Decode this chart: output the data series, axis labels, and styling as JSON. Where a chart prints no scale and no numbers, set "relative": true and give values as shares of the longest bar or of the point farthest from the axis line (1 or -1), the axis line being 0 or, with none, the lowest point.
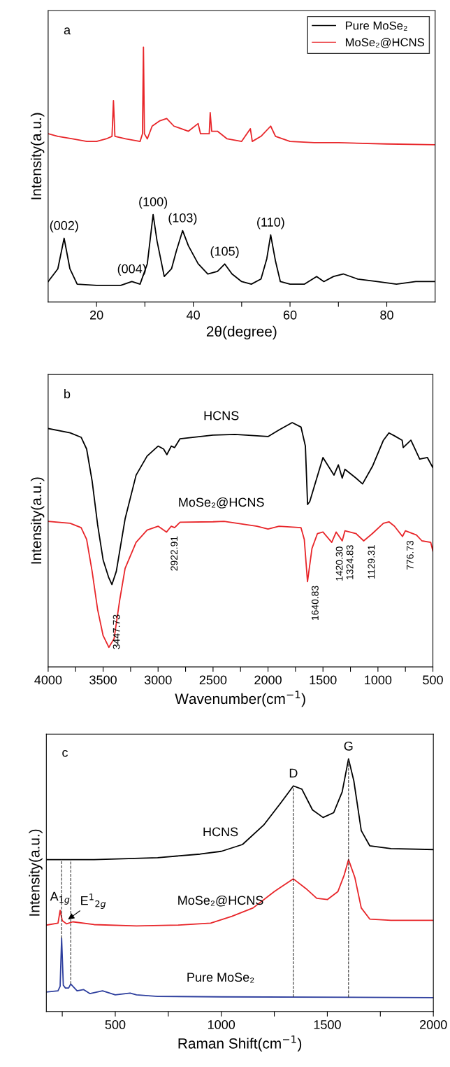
{
  "chart_data": [
    {
      "type": "line",
      "relative": true,
      "xlabel": "2θ(degree)",
      "ylabel": "Intensity(a.u.)",
      "xlim": [
        10,
        90
      ],
      "xticks": [
        20,
        {
          "value": 30,
          "label": null
        },
        40,
        {
          "value": 50,
          "label": null
        },
        60,
        {
          "value": 70,
          "label": null
        },
        80
      ],
      "tick_labels": "x",
      "legend": "top right",
      "series": [
        {
          "name": "Pure MoSe₂",
          "color": "#000000",
          "x": [
            10,
            12,
            13.3,
            14.5,
            16,
            20,
            25,
            27.3,
            29,
            30.5,
            31.7,
            32.5,
            34,
            35.5,
            36.5,
            37.8,
            39,
            41,
            43,
            45,
            46.5,
            48,
            50,
            52,
            54,
            55.2,
            56,
            57,
            58,
            60,
            63,
            65.5,
            67,
            69,
            71,
            74,
            78,
            82,
            86,
            90
          ],
          "values": [
            0.08,
            0.13,
            0.25,
            0.13,
            0.07,
            0.065,
            0.065,
            0.08,
            0.07,
            0.15,
            0.343,
            0.24,
            0.1,
            0.13,
            0.2,
            0.28,
            0.22,
            0.15,
            0.11,
            0.12,
            0.149,
            0.11,
            0.08,
            0.07,
            0.09,
            0.17,
            0.263,
            0.16,
            0.08,
            0.07,
            0.07,
            0.1,
            0.08,
            0.1,
            0.11,
            0.09,
            0.08,
            0.07,
            0.08,
            0.08
          ]
        },
        {
          "name": "MoSe₂@HCNS",
          "color": "#e8262a",
          "x": [
            10,
            12,
            15,
            18,
            20,
            22,
            23.2,
            23.5,
            23.8,
            26,
            29,
            29.5,
            29.7,
            29.9,
            30.5,
            31.5,
            33,
            34.5,
            36,
            39,
            41,
            41.5,
            43.3,
            43.5,
            43.8,
            45,
            47,
            50,
            51.8,
            52.2,
            54,
            56,
            57,
            60,
            65,
            70,
            80,
            90
          ],
          "values": [
            0.66,
            0.65,
            0.64,
            0.63,
            0.63,
            0.64,
            0.65,
            0.79,
            0.65,
            0.64,
            0.63,
            0.66,
            1.0,
            0.66,
            0.64,
            0.69,
            0.71,
            0.72,
            0.69,
            0.67,
            0.7,
            0.66,
            0.66,
            0.743,
            0.67,
            0.67,
            0.64,
            0.63,
            0.68,
            0.63,
            0.65,
            0.69,
            0.65,
            0.63,
            0.625,
            0.625,
            0.62,
            0.617
          ]
        }
      ],
      "annotations": [
        "a",
        {
          "text": "(002)",
          "x": 13.3,
          "y": 0.25
        },
        {
          "text": "(004)",
          "x": 27.3,
          "y": 0.08
        },
        {
          "text": "(100)",
          "x": 31.7,
          "y": 0.343
        },
        {
          "text": "(103)",
          "x": 37.8,
          "y": 0.28
        },
        {
          "text": "(105)",
          "x": 46.5,
          "y": 0.149
        },
        {
          "text": "(110)",
          "x": 56,
          "y": 0.263
        }
      ]
    },
    {
      "type": "line",
      "relative": true,
      "xlabel": "Wavenumber(cm$^{−1}$)",
      "ylabel": "Intensity(a.u.)",
      "xlim": [
        4000,
        500
      ],
      "xticks": [
        4000,
        {
          "value": 3750,
          "label": null
        },
        3500,
        {
          "value": 3250,
          "label": null
        },
        3000,
        {
          "value": 2750,
          "label": null
        },
        2500,
        {
          "value": 2250,
          "label": null
        },
        2000,
        {
          "value": 1750,
          "label": null
        },
        1500,
        {
          "value": 1250,
          "label": null
        },
        1000,
        {
          "value": 750,
          "label": null
        },
        500
      ],
      "tick_labels": "x",
      "series": [
        {
          "name": "HCNS",
          "color": "#000000",
          "x": [
            4000,
            3800,
            3700,
            3650,
            3600,
            3550,
            3500,
            3450,
            3420,
            3380,
            3300,
            3200,
            3100,
            3000,
            2950,
            2920,
            2880,
            2850,
            2800,
            2500,
            2300,
            2100,
            2000,
            1900,
            1780,
            1700,
            1660,
            1640,
            1620,
            1580,
            1500,
            1450,
            1400,
            1360,
            1325,
            1300,
            1200,
            1140,
            1050,
            950,
            900,
            850,
            780,
            770,
            700,
            620,
            550,
            500
          ],
          "values": [
            0.976,
            0.958,
            0.94,
            0.892,
            0.761,
            0.582,
            0.438,
            0.367,
            0.337,
            0.391,
            0.606,
            0.785,
            0.863,
            0.904,
            0.892,
            0.869,
            0.904,
            0.898,
            0.934,
            0.949,
            0.952,
            0.946,
            0.943,
            0.97,
            1.0,
            0.982,
            0.904,
            0.665,
            0.677,
            0.737,
            0.857,
            0.821,
            0.785,
            0.827,
            0.773,
            0.809,
            0.773,
            0.749,
            0.821,
            0.928,
            0.958,
            0.946,
            0.928,
            0.898,
            0.928,
            0.851,
            0.857,
            0.815
          ]
        },
        {
          "name": "MoSe₂@HCNS",
          "color": "#e8262a",
          "x": [
            4000,
            3800,
            3700,
            3650,
            3600,
            3550,
            3500,
            3447.73,
            3400,
            3350,
            3300,
            3200,
            3100,
            3000,
            2922.91,
            2880,
            2850,
            2800,
            2500,
            2400,
            2100,
            2000,
            1900,
            1700,
            1670,
            1640.83,
            1600,
            1550,
            1500,
            1420.3,
            1380,
            1324.83,
            1300,
            1200,
            1129.31,
            1050,
            950,
            900,
            850,
            776.73,
            750,
            650,
            600,
            520,
            500
          ],
          "values": [
            0.596,
            0.588,
            0.57,
            0.522,
            0.391,
            0.235,
            0.128,
            0.08,
            0.116,
            0.271,
            0.403,
            0.51,
            0.56,
            0.576,
            0.552,
            0.576,
            0.57,
            0.592,
            0.594,
            0.596,
            0.576,
            0.564,
            0.576,
            0.57,
            0.522,
            0.349,
            0.485,
            0.546,
            0.552,
            0.51,
            0.552,
            0.516,
            0.557,
            0.546,
            0.516,
            0.546,
            0.588,
            0.594,
            0.576,
            0.534,
            0.557,
            0.54,
            0.516,
            0.51,
            0.474
          ]
        }
      ],
      "annotations": [
        "b",
        {
          "text": "3447.73",
          "x": 3447.73,
          "y": 0.08
        },
        {
          "text": "2922.91",
          "x": 2922.91,
          "y": 0.552
        },
        {
          "text": "1640.83",
          "x": 1640.83,
          "y": 0.349
        },
        {
          "text": "1420.30",
          "x": 1420.3,
          "y": 0.51
        },
        {
          "text": "1324.83",
          "x": 1324.83,
          "y": 0.516
        },
        {
          "text": "1129.31",
          "x": 1129.31,
          "y": 0.516
        },
        {
          "text": "776.73",
          "x": 776.73,
          "y": 0.534
        }
      ]
    },
    {
      "type": "line",
      "relative": true,
      "xlabel": "Raman Shift(cm$^{−1}$)",
      "ylabel": "Intensity(a.u.)",
      "xlim": [
        175,
        2000
      ],
      "xticks": [
        {
          "value": 250,
          "label": null
        },
        500,
        {
          "value": 750,
          "label": null
        },
        1000,
        {
          "value": 1250,
          "label": null
        },
        1500,
        {
          "value": 1750,
          "label": null
        },
        2000
      ],
      "tick_labels": "x",
      "series": [
        {
          "name": "HCNS",
          "color": "#000000",
          "x": [
            175,
            400,
            700,
            900,
            1000,
            1100,
            1200,
            1280,
            1340,
            1380,
            1430,
            1480,
            1530,
            1570,
            1600,
            1625,
            1660,
            1700,
            1800,
            2000
          ],
          "values": [
            0.601,
            0.601,
            0.609,
            0.623,
            0.634,
            0.661,
            0.738,
            0.825,
            0.893,
            0.88,
            0.798,
            0.768,
            0.787,
            0.869,
            1.0,
            0.913,
            0.716,
            0.656,
            0.645,
            0.641
          ]
        },
        {
          "name": "MoSe₂@HCNS",
          "color": "#e8262a",
          "x": [
            175,
            230,
            240,
            250,
            270,
            300,
            400,
            600,
            800,
            950,
            1050,
            1150,
            1250,
            1340,
            1400,
            1450,
            1500,
            1550,
            1580,
            1600,
            1630,
            1660,
            1700,
            1800,
            2000
          ],
          "values": [
            0.342,
            0.35,
            0.4,
            0.36,
            0.347,
            0.355,
            0.344,
            0.339,
            0.342,
            0.35,
            0.377,
            0.41,
            0.475,
            0.525,
            0.486,
            0.448,
            0.443,
            0.475,
            0.541,
            0.601,
            0.53,
            0.41,
            0.366,
            0.361,
            0.361
          ]
        },
        {
          "name": "Pure MoSe₂",
          "color": "#2e3f9e",
          "x": [
            175,
            230,
            240,
            247,
            255,
            265,
            280,
            290,
            300,
            320,
            350,
            380,
            440,
            500,
            570,
            600,
            700,
            1000,
            2000
          ],
          "values": [
            0.077,
            0.082,
            0.1,
            0.29,
            0.104,
            0.093,
            0.093,
            0.109,
            0.1,
            0.082,
            0.087,
            0.071,
            0.082,
            0.066,
            0.073,
            0.066,
            0.06,
            0.058,
            0.055
          ]
        }
      ],
      "ref_lines": [
        {
          "axis": "x",
          "value": 1340,
          "color": "#333333",
          "line_style": "dashed"
        },
        {
          "axis": "x",
          "value": 1600,
          "color": "#333333",
          "line_style": "dashed"
        },
        {
          "axis": "x",
          "value": 247,
          "color": "#333333",
          "line_style": "dashed"
        },
        {
          "axis": "x",
          "value": 290,
          "color": "#333333",
          "line_style": "dashed"
        }
      ],
      "annotations": [
        "c",
        {
          "text": "D",
          "x": 1340,
          "y": 0.893
        },
        {
          "text": "G",
          "x": 1600,
          "y": 1.0
        },
        {
          "text": "A$_{1g}$",
          "x": 240,
          "y": 0.4
        },
        {
          "text": "E$^{1}$$_{2g}$",
          "x": 270,
          "y": 0.36
        }
      ]
    }
  ]
}
